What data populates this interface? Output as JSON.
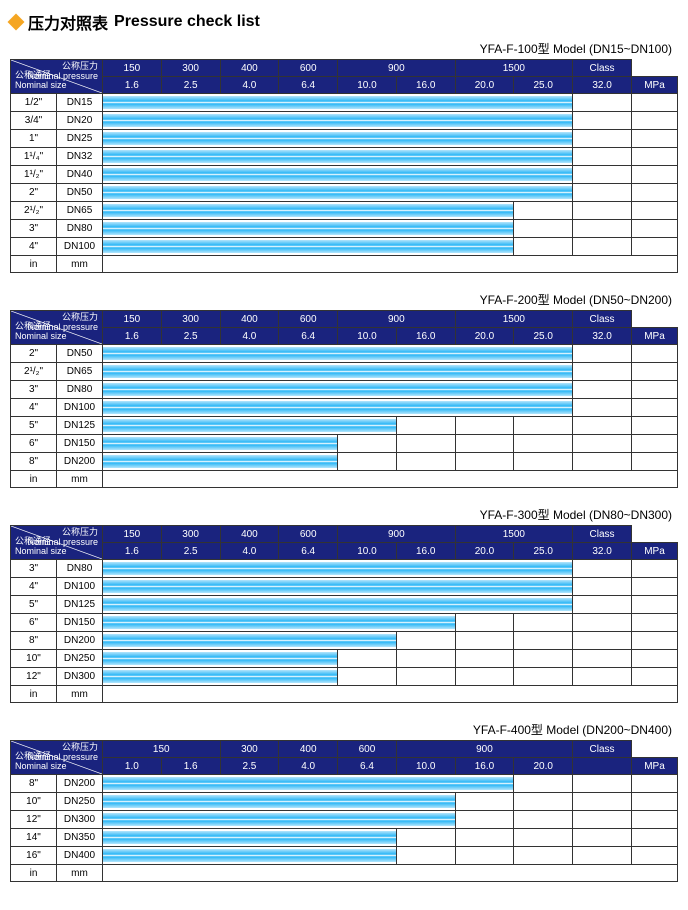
{
  "title_cn": "压力对照表",
  "title_en": "Pressure check list",
  "header_labels": {
    "nominal_pressure_cn": "公称压力",
    "nominal_pressure_en": "Nominal pressure",
    "nominal_size_cn": "公称通径",
    "nominal_size_en": "Nominal size",
    "class": "Class",
    "mpa": "MPa",
    "in": "in",
    "mm": "mm"
  },
  "colors": {
    "header_bg": "#1a237e",
    "header_fg": "#ffffff",
    "bar_gradient": [
      "#b3e5fc",
      "#29b6f6",
      "#ffffff"
    ],
    "diamond": "#f5a623",
    "border": "#333333"
  },
  "tables": [
    {
      "model": "YFA-F-100型  Model (DN15~DN100)",
      "class_vals": [
        "150",
        "300",
        "400",
        "600",
        "900",
        "",
        "1500",
        ""
      ],
      "mpa_vals": [
        "1.6",
        "2.5",
        "4.0",
        "6.4",
        "10.0",
        "16.0",
        "20.0",
        "25.0",
        "32.0"
      ],
      "rows": [
        {
          "in": "1/2\"",
          "dn": "DN15",
          "span": 8
        },
        {
          "in": "3/4\"",
          "dn": "DN20",
          "span": 8
        },
        {
          "in": "1\"",
          "dn": "DN25",
          "span": 8
        },
        {
          "in": "1¹/₄\"",
          "dn": "DN32",
          "span": 8
        },
        {
          "in": "1¹/₂\"",
          "dn": "DN40",
          "span": 8
        },
        {
          "in": "2\"",
          "dn": "DN50",
          "span": 8
        },
        {
          "in": "2¹/₂\"",
          "dn": "DN65",
          "span": 7
        },
        {
          "in": "3\"",
          "dn": "DN80",
          "span": 7
        },
        {
          "in": "4\"",
          "dn": "DN100",
          "span": 7
        }
      ]
    },
    {
      "model": "YFA-F-200型  Model (DN50~DN200)",
      "class_vals": [
        "150",
        "300",
        "400",
        "600",
        "900",
        "",
        "1500",
        ""
      ],
      "mpa_vals": [
        "1.6",
        "2.5",
        "4.0",
        "6.4",
        "10.0",
        "16.0",
        "20.0",
        "25.0",
        "32.0"
      ],
      "rows": [
        {
          "in": "2\"",
          "dn": "DN50",
          "span": 8
        },
        {
          "in": "2¹/₂\"",
          "dn": "DN65",
          "span": 8
        },
        {
          "in": "3\"",
          "dn": "DN80",
          "span": 8
        },
        {
          "in": "4\"",
          "dn": "DN100",
          "span": 8
        },
        {
          "in": "5\"",
          "dn": "DN125",
          "span": 5
        },
        {
          "in": "6\"",
          "dn": "DN150",
          "span": 4
        },
        {
          "in": "8\"",
          "dn": "DN200",
          "span": 4
        }
      ]
    },
    {
      "model": "YFA-F-300型  Model (DN80~DN300)",
      "class_vals": [
        "150",
        "300",
        "400",
        "600",
        "900",
        "",
        "1500",
        ""
      ],
      "mpa_vals": [
        "1.6",
        "2.5",
        "4.0",
        "6.4",
        "10.0",
        "16.0",
        "20.0",
        "25.0",
        "32.0"
      ],
      "rows": [
        {
          "in": "3\"",
          "dn": "DN80",
          "span": 8
        },
        {
          "in": "4\"",
          "dn": "DN100",
          "span": 8
        },
        {
          "in": "5\"",
          "dn": "DN125",
          "span": 8
        },
        {
          "in": "6\"",
          "dn": "DN150",
          "span": 6
        },
        {
          "in": "8\"",
          "dn": "DN200",
          "span": 5
        },
        {
          "in": "10\"",
          "dn": "DN250",
          "span": 4
        },
        {
          "in": "12\"",
          "dn": "DN300",
          "span": 4
        }
      ]
    },
    {
      "model": "YFA-F-400型  Model (DN200~DN400)",
      "class_vals": [
        "",
        "150",
        "300",
        "400",
        "600",
        "900",
        "",
        ""
      ],
      "mpa_vals": [
        "1.0",
        "1.6",
        "2.5",
        "4.0",
        "6.4",
        "10.0",
        "16.0",
        "20.0",
        ""
      ],
      "rows": [
        {
          "in": "8\"",
          "dn": "DN200",
          "span": 7
        },
        {
          "in": "10\"",
          "dn": "DN250",
          "span": 6
        },
        {
          "in": "12\"",
          "dn": "DN300",
          "span": 6
        },
        {
          "in": "14\"",
          "dn": "DN350",
          "span": 5
        },
        {
          "in": "16\"",
          "dn": "DN400",
          "span": 5
        }
      ]
    }
  ]
}
